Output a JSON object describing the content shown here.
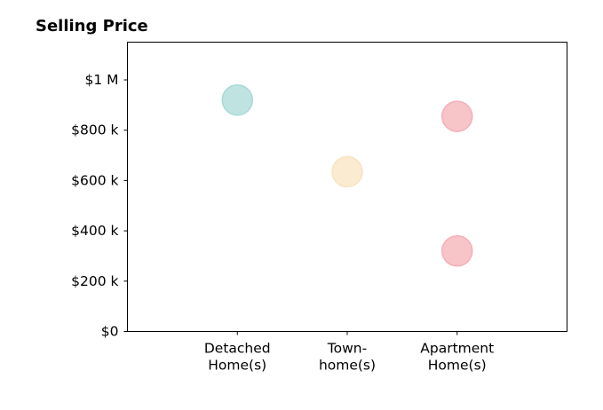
{
  "chart_data": {
    "type": "scatter",
    "title": "Selling Price",
    "xlabel": "",
    "ylabel": "",
    "categories": [
      [
        "Detached",
        "Home(s)"
      ],
      [
        "Town-",
        "home(s)"
      ],
      [
        "Apartment",
        "Home(s)"
      ]
    ],
    "xlim": [
      0,
      4
    ],
    "ylim": [
      0,
      1150000
    ],
    "yticks": [
      {
        "value": 0,
        "label": "$0"
      },
      {
        "value": 200000,
        "label": "$200 k"
      },
      {
        "value": 400000,
        "label": "$400 k"
      },
      {
        "value": 600000,
        "label": "$600 k"
      },
      {
        "value": 800000,
        "label": "$800 k"
      },
      {
        "value": 1000000,
        "label": "$1 M"
      }
    ],
    "points": [
      {
        "category_index": 0,
        "value": 920000,
        "color": "#a8dad5"
      },
      {
        "category_index": 1,
        "value": 635000,
        "color": "#f8e4c2"
      },
      {
        "category_index": 2,
        "value": 855000,
        "color": "#f4b0b6"
      },
      {
        "category_index": 2,
        "value": 320000,
        "color": "#f4b0b6"
      }
    ],
    "grid": false,
    "legend": "none"
  }
}
